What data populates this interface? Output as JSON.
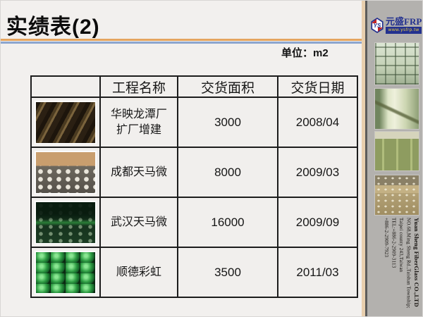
{
  "title": "实绩表(2)",
  "unit_label": "单位：m2",
  "table": {
    "headers": {
      "image": "",
      "name": "工程名称",
      "area": "交货面积",
      "date": "交货日期"
    },
    "rows": [
      {
        "image_desc": "factory-roof-beams-photo",
        "name": "华映龙潭厂扩厂增建",
        "area": "3000",
        "date": "2008/04"
      },
      {
        "image_desc": "construction-site-white-tanks-photo",
        "name": "成都天马微",
        "area": "8000",
        "date": "2009/03"
      },
      {
        "image_desc": "dark-warehouse-dotted-floor-photo",
        "name": "武汉天马微",
        "area": "16000",
        "date": "2009/09"
      },
      {
        "image_desc": "green-domes-photo",
        "name": "顺德彩虹",
        "area": "3500",
        "date": "2011/03"
      }
    ]
  },
  "sidebar": {
    "logo": {
      "monogram": "YS",
      "brand": "元盛FRP",
      "website": "www.ysfrp.tw"
    },
    "photos": [
      "coffered-ceiling-photo",
      "frp-tank-photo",
      "storage-tanks-photo",
      "raised-floor-photo"
    ],
    "address_lines": [
      "Yuan Sheng FiberGlass CO.,LTD",
      "NO.68,Ming Sheng Rd.,Taishan Township;",
      "Taipei county 243,Taiwan",
      "TEL:+886-2-2909-3113",
      "+886-2-2909-7923"
    ]
  },
  "colors": {
    "accent_orange": "#e5a55f",
    "accent_blue": "#8ca6cf",
    "sidebar_gray": "#b3b1ae",
    "logo_blue": "#23318f",
    "logo_yellow": "#f0d23c"
  }
}
